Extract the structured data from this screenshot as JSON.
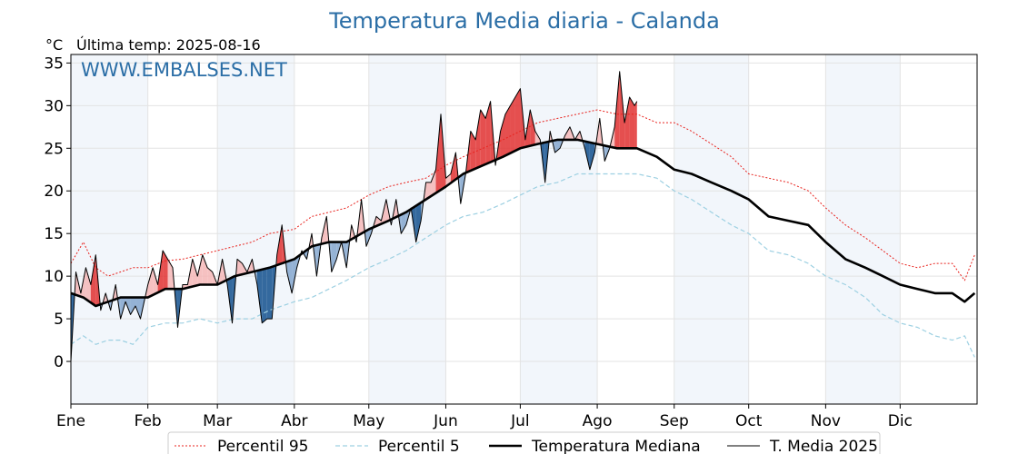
{
  "chart_data": {
    "type": "line",
    "title": "Temperatura Media diaria - Calanda",
    "unit": "°C",
    "last_temp_label": "Última temp: 2025-08-16",
    "watermark": "WWW.EMBALSES.NET",
    "xlabel": "",
    "ylabel": "",
    "xlim": [
      0,
      365
    ],
    "ylim": [
      -5,
      36
    ],
    "y_ticks": [
      0,
      5,
      10,
      15,
      20,
      25,
      30,
      35
    ],
    "month_labels": [
      "Ene",
      "Feb",
      "Mar",
      "Abr",
      "May",
      "Jun",
      "Jul",
      "Ago",
      "Sep",
      "Oct",
      "Nov",
      "Dic"
    ],
    "month_starts": [
      0,
      31,
      59,
      90,
      120,
      151,
      181,
      212,
      243,
      273,
      304,
      334
    ],
    "shaded_months": [
      "Ene",
      "Mar",
      "May",
      "Jul",
      "Sep",
      "Nov"
    ],
    "grid": true,
    "legend_position": "bottom",
    "fill_colors": {
      "above": "#f4b6b6",
      "above_strong": "#e03030",
      "below": "#8aabd0",
      "below_strong": "#1f5a94"
    },
    "series": [
      {
        "name": "Percentil 95",
        "style": "dotted",
        "color": "#e8231e",
        "x": [
          0,
          5,
          10,
          15,
          20,
          25,
          31,
          38,
          45,
          52,
          59,
          66,
          73,
          80,
          90,
          97,
          104,
          111,
          120,
          128,
          135,
          143,
          151,
          158,
          166,
          174,
          181,
          188,
          196,
          204,
          212,
          220,
          228,
          236,
          243,
          250,
          258,
          266,
          273,
          281,
          289,
          297,
          304,
          312,
          320,
          327,
          334,
          341,
          348,
          355,
          360,
          364
        ],
        "y": [
          11.5,
          14,
          11,
          10,
          10.5,
          11,
          11,
          11.8,
          12,
          12.5,
          13,
          13.5,
          14,
          15,
          15.5,
          17,
          17.5,
          18,
          19.5,
          20.5,
          21,
          21.5,
          23,
          24,
          25,
          26,
          27,
          28,
          28.5,
          29,
          29.5,
          29,
          29,
          28,
          28,
          27,
          25.5,
          24,
          22,
          21.5,
          21,
          20,
          18,
          16,
          14.5,
          13,
          11.5,
          11,
          11.5,
          11.5,
          9.5,
          12.5
        ]
      },
      {
        "name": "Percentil 5",
        "style": "dashed",
        "color": "#9dd0e2",
        "x": [
          0,
          5,
          10,
          15,
          20,
          25,
          31,
          38,
          45,
          52,
          59,
          66,
          73,
          80,
          90,
          97,
          104,
          111,
          120,
          128,
          135,
          143,
          151,
          158,
          166,
          174,
          181,
          188,
          196,
          204,
          212,
          220,
          228,
          236,
          243,
          250,
          258,
          266,
          273,
          281,
          289,
          297,
          304,
          312,
          320,
          327,
          334,
          341,
          348,
          355,
          360,
          364
        ],
        "y": [
          2,
          3,
          2,
          2.5,
          2.5,
          2,
          4,
          4.5,
          4.5,
          5,
          4.5,
          5,
          5,
          6,
          7,
          7.5,
          8.5,
          9.5,
          11,
          12,
          13,
          14.5,
          16,
          17,
          17.5,
          18.5,
          19.5,
          20.5,
          21,
          22,
          22,
          22,
          22,
          21.5,
          20,
          19,
          17.5,
          16,
          15,
          13,
          12.5,
          11.5,
          10,
          9,
          7.5,
          5.5,
          4.5,
          4,
          3,
          2.5,
          3,
          0.5
        ]
      },
      {
        "name": "Temperatura Mediana",
        "style": "solid-thick",
        "color": "#000000",
        "x": [
          0,
          5,
          10,
          15,
          20,
          25,
          31,
          38,
          45,
          52,
          59,
          66,
          73,
          80,
          90,
          97,
          104,
          111,
          120,
          128,
          135,
          143,
          151,
          158,
          166,
          174,
          181,
          188,
          196,
          204,
          212,
          220,
          228,
          236,
          243,
          250,
          258,
          266,
          273,
          281,
          289,
          297,
          304,
          312,
          320,
          327,
          334,
          341,
          348,
          355,
          360,
          364
        ],
        "y": [
          8,
          7.5,
          6.5,
          7,
          7.5,
          7.5,
          7.5,
          8.5,
          8.5,
          9,
          9,
          10,
          10.5,
          11,
          12,
          13.5,
          14,
          14,
          15.5,
          16.5,
          17.5,
          19,
          20.5,
          22,
          23,
          24,
          25,
          25.5,
          26,
          26,
          25.5,
          25,
          25,
          24,
          22.5,
          22,
          21,
          20,
          19,
          17,
          16.5,
          16,
          14,
          12,
          11,
          10,
          9,
          8.5,
          8,
          8,
          7,
          8
        ]
      },
      {
        "name": "T. Media 2025",
        "style": "solid-thin",
        "color": "#000000",
        "x": [
          0,
          2,
          4,
          6,
          8,
          10,
          12,
          14,
          16,
          18,
          20,
          22,
          24,
          26,
          28,
          31,
          33,
          35,
          37,
          39,
          41,
          43,
          45,
          47,
          49,
          51,
          53,
          55,
          57,
          59,
          61,
          63,
          65,
          67,
          69,
          71,
          73,
          75,
          77,
          79,
          81,
          83,
          85,
          87,
          89,
          91,
          93,
          95,
          97,
          99,
          101,
          103,
          105,
          107,
          109,
          111,
          113,
          115,
          117,
          119,
          121,
          123,
          125,
          127,
          129,
          131,
          133,
          135,
          137,
          139,
          141,
          143,
          145,
          147,
          149,
          151,
          153,
          155,
          157,
          159,
          161,
          163,
          165,
          167,
          169,
          171,
          173,
          175,
          177,
          179,
          181,
          183,
          185,
          187,
          189,
          191,
          193,
          195,
          197,
          199,
          201,
          203,
          205,
          207,
          209,
          211,
          213,
          215,
          217,
          219,
          221,
          223,
          225,
          227,
          228
        ],
        "y": [
          0,
          10.5,
          8,
          11,
          9,
          12.5,
          6,
          8,
          6,
          9,
          5,
          7,
          5.5,
          6.5,
          5,
          9,
          11,
          9,
          13,
          12,
          11,
          4,
          9,
          9,
          12,
          10,
          12.5,
          11,
          10.5,
          9,
          12,
          9,
          4.5,
          12,
          11.5,
          10.5,
          12,
          9,
          4.5,
          5,
          5,
          12.5,
          16,
          10.5,
          8,
          11,
          13,
          12,
          15,
          10,
          14.5,
          17,
          10.5,
          12,
          14,
          11,
          16,
          14,
          19,
          13.5,
          15,
          17,
          16.5,
          19,
          16,
          19,
          15,
          16,
          18,
          14,
          16.5,
          21,
          21,
          22.5,
          29,
          21.5,
          22,
          24.5,
          18.5,
          22,
          27,
          26,
          29.5,
          28.5,
          30.5,
          23,
          27,
          29,
          30,
          31,
          32,
          26,
          29.5,
          27,
          26,
          21,
          27,
          24.5,
          25,
          26.5,
          27.5,
          26,
          27,
          25,
          22.5,
          24.5,
          28.5,
          23.5,
          25,
          27.5,
          34,
          28,
          31,
          30,
          30.5
        ]
      }
    ]
  }
}
